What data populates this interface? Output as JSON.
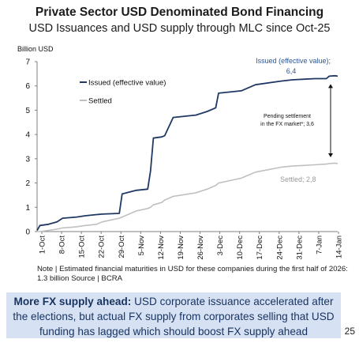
{
  "header": {
    "title": "Private Sector USD Denominated Bond Financing",
    "subtitle": "USD Issuances and USD supply through MLC since Oct-25"
  },
  "chart_data": {
    "type": "line",
    "ylabel": "Billion USD",
    "ylim": [
      0,
      7
    ],
    "yticks": [
      0,
      1,
      2,
      3,
      4,
      5,
      6,
      7
    ],
    "xlabel": "",
    "x_tick_labels": [
      "1-Oct",
      "8-Oct",
      "15-Oct",
      "22-Oct",
      "29-Oct",
      "5-Nov",
      "12-Nov",
      "19-Nov",
      "26-Nov",
      "3-Dec",
      "10-Dec",
      "17-Dec",
      "24-Dec",
      "31-Dec",
      "7-Jan",
      "14-Jan"
    ],
    "x": [
      "2025-10-01",
      "2025-10-02",
      "2025-10-05",
      "2025-10-08",
      "2025-10-10",
      "2025-10-15",
      "2025-10-18",
      "2025-10-22",
      "2025-10-24",
      "2025-10-30",
      "2025-10-31",
      "2025-11-05",
      "2025-11-09",
      "2025-11-10",
      "2025-11-11",
      "2025-11-14",
      "2025-11-15",
      "2025-11-18",
      "2025-11-26",
      "2025-11-30",
      "2025-12-03",
      "2025-12-04",
      "2025-12-12",
      "2025-12-17",
      "2025-12-26",
      "2025-12-30",
      "2026-01-07",
      "2026-01-11",
      "2026-01-12",
      "2026-01-14",
      "2026-01-15"
    ],
    "series": [
      {
        "name": "Issued (effective value)",
        "color": "#1f3864",
        "values": [
          0.05,
          0.25,
          0.3,
          0.4,
          0.55,
          0.6,
          0.65,
          0.7,
          0.72,
          0.75,
          1.55,
          1.7,
          1.75,
          2.5,
          3.85,
          3.9,
          3.95,
          4.7,
          4.8,
          4.95,
          5.1,
          5.7,
          5.8,
          6.05,
          6.2,
          6.25,
          6.3,
          6.3,
          6.4,
          6.42,
          6.4
        ]
      },
      {
        "name": "Settled",
        "color": "#bfbfbf",
        "values": [
          0.0,
          0.0,
          0.05,
          0.1,
          0.15,
          0.2,
          0.25,
          0.3,
          0.4,
          0.55,
          0.6,
          0.85,
          0.95,
          1.0,
          1.1,
          1.2,
          1.3,
          1.45,
          1.6,
          1.75,
          1.9,
          2.0,
          2.2,
          2.45,
          2.65,
          2.7,
          2.75,
          2.78,
          2.8,
          2.82,
          2.8
        ]
      }
    ],
    "legend_position": "top-left",
    "grid": false,
    "annotations": {
      "issued_end": {
        "line1": "Issued (effective value);",
        "line2": "6,4"
      },
      "pending": {
        "line1": "Pending settlement",
        "line2": "in the FX market*; 3,6"
      },
      "settled_end": "Settled; 2,8"
    },
    "colors": {
      "issued": "#1f3864",
      "settled": "#bfbfbf",
      "annotation_text": "#2f5597",
      "axis": "#7f7f7f"
    }
  },
  "note": "Note | Estimated financial maturities in USD for these companies during the first half of 2026: 1.3 billion Source | BCRA",
  "callout": {
    "bold": "More FX supply ahead:",
    "text": " USD corporate issuance accelerated after the elections, but actual FX supply from corporates selling that USD funding has lagged which should boost FX supply ahead",
    "background": "#d7e1f4"
  },
  "page_number": "25"
}
